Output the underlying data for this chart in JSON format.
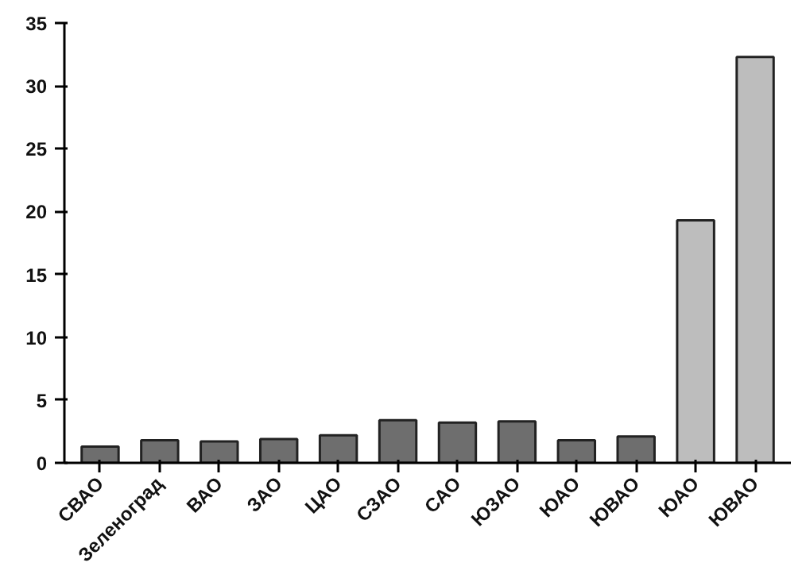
{
  "chart_data": {
    "type": "bar",
    "categories": [
      "СВАО",
      "Зеленоград",
      "ВАО",
      "ЗАО",
      "ЦАО",
      "СЗАО",
      "САО",
      "ЮЗАО",
      "ЮАО",
      "ЮВАО",
      "ЮАО",
      "ЮВАО"
    ],
    "values": [
      1.3,
      1.8,
      1.7,
      1.9,
      2.2,
      3.4,
      3.2,
      3.3,
      1.8,
      2.1,
      19.3,
      32.3
    ],
    "colors": [
      "#6e6e6e",
      "#6e6e6e",
      "#6e6e6e",
      "#6e6e6e",
      "#6e6e6e",
      "#6e6e6e",
      "#6e6e6e",
      "#6e6e6e",
      "#6e6e6e",
      "#6e6e6e",
      "#bdbdbd",
      "#bdbdbd"
    ],
    "ylim": [
      0,
      35
    ],
    "yticks": [
      0,
      5,
      10,
      15,
      20,
      25,
      30,
      35
    ],
    "grid": false
  }
}
